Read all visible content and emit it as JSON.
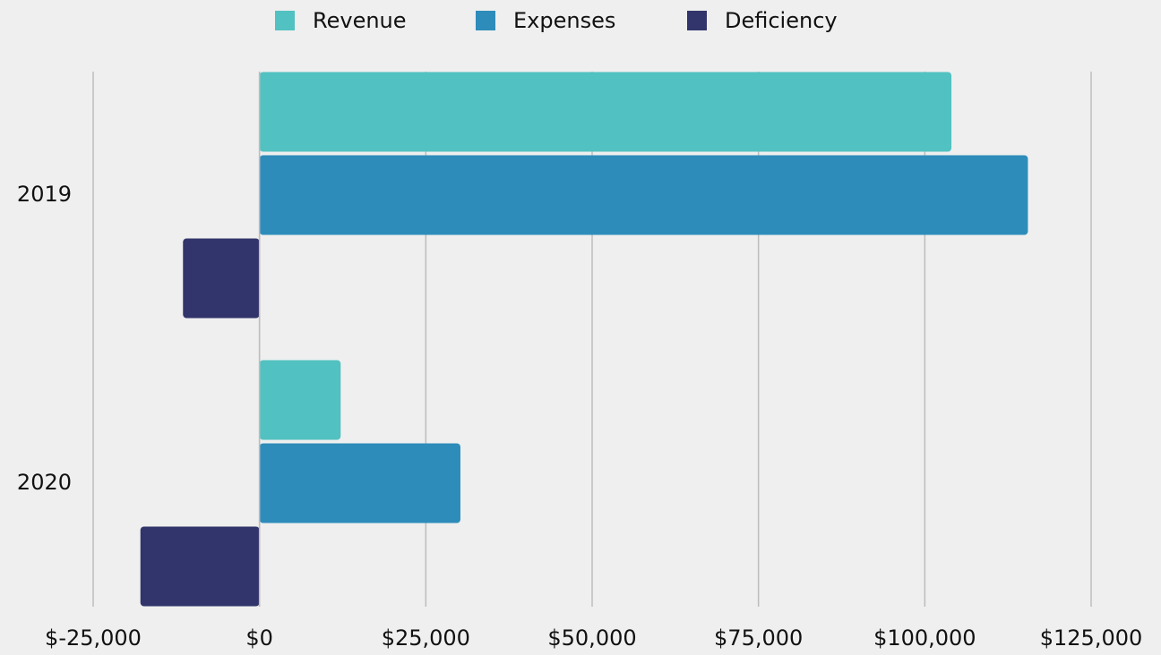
{
  "chart_data": {
    "type": "bar",
    "orientation": "horizontal",
    "categories": [
      "2019",
      "2020"
    ],
    "series": [
      {
        "name": "Revenue",
        "color": "#52c1c1",
        "values": [
          104000,
          12200
        ]
      },
      {
        "name": "Expenses",
        "color": "#2e8cba",
        "values": [
          115500,
          30200
        ]
      },
      {
        "name": "Deficiency",
        "color": "#32356b",
        "values": [
          -11500,
          -17900
        ]
      }
    ],
    "xlim": [
      -25000,
      125000
    ],
    "xticks": [
      {
        "value": -25000,
        "label": "$-25,000"
      },
      {
        "value": 0,
        "label": "$0"
      },
      {
        "value": 25000,
        "label": "$25,000"
      },
      {
        "value": 50000,
        "label": "$50,000"
      },
      {
        "value": 75000,
        "label": "$75,000"
      },
      {
        "value": 100000,
        "label": "$100,000"
      },
      {
        "value": 125000,
        "label": "$125,000"
      }
    ],
    "grid": true,
    "legend": "top"
  }
}
